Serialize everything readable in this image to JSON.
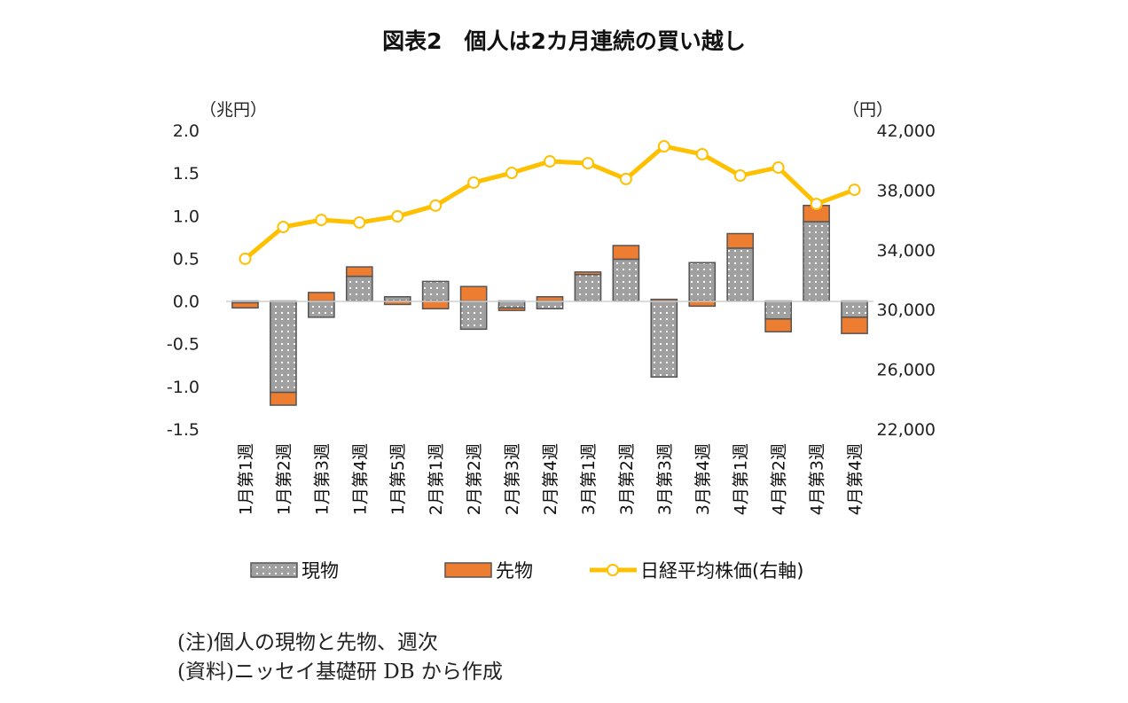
{
  "chart_data": {
    "type": "bar",
    "title": "図表2　個人は2カ月連続の買い越し",
    "ylabel_left": "（兆円）",
    "ylabel_right": "（円）",
    "ylim_left": [
      -1.5,
      2.0
    ],
    "ylim_right": [
      22000,
      42000
    ],
    "yticks_left": [
      "2.0",
      "1.5",
      "1.0",
      "0.5",
      "0.0",
      "-0.5",
      "-1.0",
      "-1.5"
    ],
    "yticks_right": [
      "42,000",
      "38,000",
      "34,000",
      "30,000",
      "26,000",
      "22,000"
    ],
    "grid": false,
    "stacked": true,
    "legend_position": "bottom",
    "categories": [
      "1月第1週",
      "1月第2週",
      "1月第3週",
      "1月第4週",
      "1月第5週",
      "2月第1週",
      "2月第2週",
      "2月第3週",
      "2月第4週",
      "3月第1週",
      "3月第2週",
      "3月第3週",
      "3月第4週",
      "4月第1週",
      "4月第2週",
      "4月第3週",
      "4月第4週"
    ],
    "series": [
      {
        "name": "現物",
        "type": "bar",
        "axis": "left",
        "color": "#a0a0a0",
        "values": [
          -0.02,
          -1.07,
          -0.19,
          0.29,
          0.05,
          0.23,
          -0.33,
          -0.08,
          -0.09,
          0.31,
          0.49,
          -0.89,
          0.45,
          0.62,
          -0.21,
          0.93,
          -0.19
        ]
      },
      {
        "name": "先物",
        "type": "bar",
        "axis": "left",
        "color": "#ed7d31",
        "values": [
          -0.06,
          -0.15,
          0.1,
          0.11,
          -0.04,
          -0.09,
          0.17,
          -0.03,
          0.05,
          0.03,
          0.16,
          0.02,
          -0.06,
          0.17,
          -0.15,
          0.19,
          -0.19
        ]
      },
      {
        "name": "日経平均株価(右軸)",
        "type": "line",
        "axis": "right",
        "color": "#ffc000",
        "values": [
          33400,
          35530,
          36000,
          35830,
          36240,
          36960,
          38500,
          39150,
          39920,
          39800,
          38740,
          40930,
          40400,
          38970,
          39510,
          37070,
          38020
        ]
      }
    ]
  },
  "notes": [
    "(注)個人の現物と先物、週次",
    "(資料)ニッセイ基礎研 DB から作成"
  ]
}
